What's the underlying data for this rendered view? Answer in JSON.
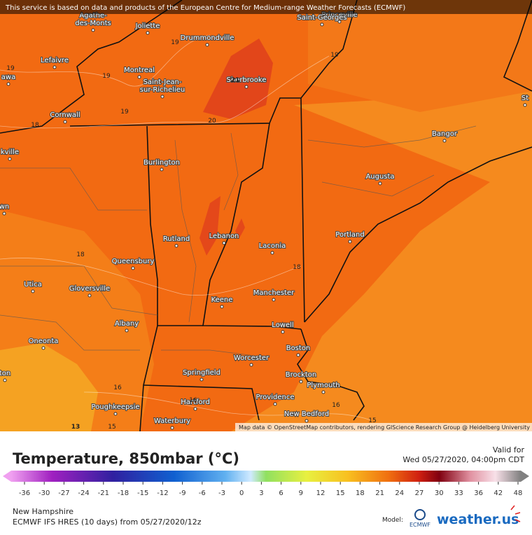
{
  "banner": "This service is based on data and products of the European Centre for Medium-range Weather Forecasts (ECMWF)",
  "map": {
    "cities": [
      {
        "lines": [
          "Princeville"
        ]
      },
      {
        "lines": [
          "Saint-Georges"
        ]
      },
      {
        "lines": [
          "Agathe-",
          "des-Monts"
        ]
      },
      {
        "lines": [
          "Joliette"
        ]
      },
      {
        "lines": [
          "Drummondville"
        ]
      },
      {
        "lines": [
          "Lefaivre"
        ]
      },
      {
        "lines": [
          "Montreal"
        ]
      },
      {
        "lines": [
          "Saint-Jean-",
          "sur-Richelieu"
        ]
      },
      {
        "lines": [
          "Sherbrooke"
        ]
      },
      {
        "lines": [
          "Cornwall"
        ]
      },
      {
        "lines": [
          "Burlington"
        ]
      },
      {
        "lines": [
          "Bangor"
        ]
      },
      {
        "lines": [
          "Augusta"
        ]
      },
      {
        "lines": [
          "Portland"
        ]
      },
      {
        "lines": [
          "Rutland"
        ]
      },
      {
        "lines": [
          "Lebanon"
        ]
      },
      {
        "lines": [
          "Laconia"
        ]
      },
      {
        "lines": [
          "Queensbury"
        ]
      },
      {
        "lines": [
          "Utica"
        ]
      },
      {
        "lines": [
          "Gloversville"
        ]
      },
      {
        "lines": [
          "Manchester"
        ]
      },
      {
        "lines": [
          "Keene"
        ]
      },
      {
        "lines": [
          "Albany"
        ]
      },
      {
        "lines": [
          "Lowell"
        ]
      },
      {
        "lines": [
          "Oneonta"
        ]
      },
      {
        "lines": [
          "Boston"
        ]
      },
      {
        "lines": [
          "Worcester"
        ]
      },
      {
        "lines": [
          "Brockton"
        ]
      },
      {
        "lines": [
          "Springfield"
        ]
      },
      {
        "lines": [
          "Plymouth"
        ]
      },
      {
        "lines": [
          "Providence"
        ]
      },
      {
        "lines": [
          "Hartford"
        ]
      },
      {
        "lines": [
          "Poughkeepsie"
        ]
      },
      {
        "lines": [
          "New Bedford"
        ]
      },
      {
        "lines": [
          "Waterbury"
        ]
      },
      {
        "lines": [
          "awa"
        ]
      },
      {
        "lines": [
          "kville"
        ]
      },
      {
        "lines": [
          "wn"
        ]
      },
      {
        "lines": [
          "ton"
        ]
      },
      {
        "lines": [
          "St"
        ]
      }
    ],
    "contour_labels": [
      19,
      19,
      19,
      19,
      19,
      18,
      21,
      20,
      18,
      18,
      16,
      16,
      16,
      15,
      15,
      13
    ],
    "attribution": "Map data © OpenStreetMap contributors, rendering GIScience Research Group @ Heidelberg University"
  },
  "legend": {
    "title": "Temperature, 850mbar (°C)",
    "valid_label": "Valid for",
    "valid_time": "Wed 05/27/2020, 04:00pm CDT",
    "ticks": [
      -36,
      -30,
      -27,
      -24,
      -21,
      -18,
      -15,
      -12,
      -9,
      -6,
      -3,
      0,
      3,
      6,
      9,
      12,
      15,
      18,
      21,
      24,
      27,
      30,
      33,
      36,
      42,
      48
    ]
  },
  "footer": {
    "region": "New Hampshire",
    "model_run": "ECMWF IFS HRES (10 days) from 05/27/2020/12z",
    "model_label": "Model:",
    "model_logo": "ECMWF",
    "brand": "weather.us"
  }
}
